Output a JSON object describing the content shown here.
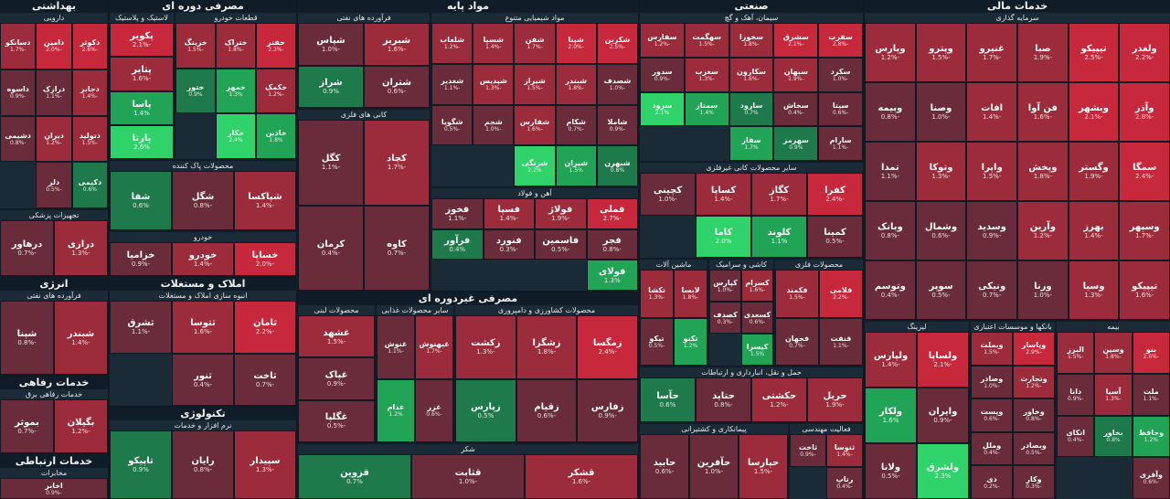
{
  "sectors": [
    {
      "name": "خدمات مالی",
      "groups": [
        {
          "name": "سرمایه گذاری",
          "tiles": [
            [
              "ولغدر",
              "-2.2%"
            ],
            [
              "تیپیکو",
              "-2.5%"
            ],
            [
              "صبا",
              "-1.9%"
            ],
            [
              "غنیرو",
              "-1.7%"
            ],
            [
              "وپترو",
              "-1.5%"
            ],
            [
              "وپارس",
              "-1.2%"
            ],
            [
              "وآذر",
              "-2.8%"
            ],
            [
              "وبشهر",
              "-2.1%"
            ],
            [
              "فن آوا",
              "-1.6%"
            ],
            [
              "افات",
              "-1.4%"
            ],
            [
              "وصنا",
              "-1.0%"
            ],
            [
              "وبیمه",
              "-0.8%"
            ],
            [
              "سمگا",
              "-2.4%"
            ],
            [
              "وگستر",
              "-1.9%"
            ],
            [
              "وپخش",
              "-1.8%"
            ],
            [
              "واپرا",
              "-1.5%"
            ],
            [
              "وتوکا",
              "-1.3%"
            ],
            [
              "تمدا",
              "-1.1%"
            ],
            [
              "وسپهر",
              "-1.7%"
            ],
            [
              "بهرز",
              "-1.4%"
            ],
            [
              "وآرین",
              "-1.2%"
            ],
            [
              "وسدید",
              "-0.9%"
            ],
            [
              "وشمال",
              "-0.6%"
            ],
            [
              "وبانک",
              "-0.8%"
            ],
            [
              "تیپیکو",
              "-1.6%"
            ],
            [
              "وسیا",
              "-1.3%"
            ],
            [
              "ورنا",
              "-1.0%"
            ],
            [
              "ونیکی",
              "-0.7%"
            ],
            [
              "سوپر",
              "-0.5%"
            ],
            [
              "وتوسم",
              "-0.4%"
            ]
          ]
        },
        {
          "name": "بیمه",
          "tiles": [
            [
              "بنو",
              "-2.6%"
            ],
            [
              "وسین",
              "-1.8%"
            ],
            [
              "البرز",
              "-1.5%"
            ],
            [
              "ملت",
              "-1.1%"
            ],
            [
              "آسیا",
              "-1.3%"
            ],
            [
              "دانا",
              "-0.9%"
            ],
            [
              "وحافظ",
              "1.2%"
            ],
            [
              "بخاور",
              "0.8%"
            ],
            [
              "اتکای",
              "-0.4%"
            ],
            [
              "وآفری",
              "-0.6%"
            ]
          ]
        },
        {
          "name": "بانکها و موسسات اعتباری",
          "tiles": [
            [
              "وپاسار",
              "-2.9%"
            ],
            [
              "وبملت",
              "-1.5%"
            ],
            [
              "وتجارت",
              "-1.2%"
            ],
            [
              "وصادر",
              "-1.0%"
            ],
            [
              "وخاور",
              "-0.8%"
            ],
            [
              "وپست",
              "-0.6%"
            ],
            [
              "وبصادر",
              "-0.5%"
            ],
            [
              "وملل",
              "-0.4%"
            ],
            [
              "وکار",
              "-0.3%"
            ],
            [
              "دی",
              "-0.2%"
            ]
          ]
        },
        {
          "name": "لیزینگ",
          "tiles": [
            [
              "ولساپا",
              "-2.1%"
            ],
            [
              "ولپارس",
              "-1.4%"
            ],
            [
              "وایران",
              "-0.9%"
            ],
            [
              "ولکار",
              "1.6%"
            ],
            [
              "ولشرق",
              "2.3%"
            ],
            [
              "ولانا",
              "-0.5%"
            ]
          ]
        }
      ]
    },
    {
      "name": "صنعتی",
      "groups": [
        {
          "name": "سیمان، آهک و گچ",
          "tiles": [
            [
              "سفرب",
              "-2.8%"
            ],
            [
              "سشرق",
              "-2.1%"
            ],
            [
              "سخوزا",
              "-1.8%"
            ],
            [
              "سهگمت",
              "-1.5%"
            ],
            [
              "سفارس",
              "-1.2%"
            ],
            [
              "سکرد",
              "-1.0%"
            ],
            [
              "سبهان",
              "-1.9%"
            ],
            [
              "سکارون",
              "-1.6%"
            ],
            [
              "سغرب",
              "-1.3%"
            ],
            [
              "سدور",
              "-0.9%"
            ],
            [
              "سیتا",
              "-0.6%"
            ],
            [
              "سخاش",
              "-0.4%"
            ],
            [
              "سارود",
              "0.7%"
            ],
            [
              "سمتاز",
              "1.4%"
            ],
            [
              "سرود",
              "2.1%"
            ],
            [
              "سارام",
              "-1.1%"
            ],
            [
              "سهرمز",
              "0.9%"
            ],
            [
              "سفار",
              "1.7%"
            ]
          ]
        },
        {
          "name": "سایر محصولات کانی غیرفلزی",
          "tiles": [
            [
              "کفرا",
              "-2.4%"
            ],
            [
              "کگاز",
              "-1.7%"
            ],
            [
              "کساپا",
              "-1.4%"
            ],
            [
              "کچینی",
              "-1.0%"
            ],
            [
              "کمینا",
              "-0.5%"
            ],
            [
              "کلوند",
              "1.1%"
            ],
            [
              "کاما",
              "2.0%"
            ]
          ]
        },
        {
          "name": "محصولات فلزی",
          "tiles": [
            [
              "فلامی",
              "-2.2%"
            ],
            [
              "فکمند",
              "-1.5%"
            ],
            [
              "فنفت",
              "-1.1%"
            ],
            [
              "فجهان",
              "-0.7%"
            ]
          ]
        },
        {
          "name": "کاشی و سرامیک",
          "tiles": [
            [
              "کسرام",
              "-1.6%"
            ],
            [
              "کپارس",
              "-1.0%"
            ],
            [
              "کسعدی",
              "-0.6%"
            ],
            [
              "کصدف",
              "-0.3%"
            ],
            [
              "کیسرا",
              "1.5%"
            ]
          ]
        },
        {
          "name": "ماشین آلات",
          "tiles": [
            [
              "لابسا",
              "-1.8%"
            ],
            [
              "تکشا",
              "-1.3%"
            ],
            [
              "تکنو",
              "1.2%"
            ],
            [
              "تیکو",
              "-0.5%"
            ]
          ]
        },
        {
          "name": "حمل و نقل، انبارداری و ارتباطات",
          "tiles": [
            [
              "حریل",
              "-1.9%"
            ],
            [
              "حکشتی",
              "-1.2%"
            ],
            [
              "حتاید",
              "-0.8%"
            ],
            [
              "حآسا",
              "0.6%"
            ]
          ]
        },
        {
          "name": "فعالیت مهندسی",
          "tiles": [
            [
              "ثنوسا",
              "-1.4%"
            ],
            [
              "ثاخت",
              "-0.9%"
            ],
            [
              "رتاپ",
              "-0.4%"
            ]
          ]
        },
        {
          "name": "پیمانکاری و کشتیرانی",
          "tiles": [
            [
              "حپارسا",
              "-1.5%"
            ],
            [
              "حآفرین",
              "-1.0%"
            ],
            [
              "حابید",
              "-0.6%"
            ]
          ]
        }
      ]
    },
    {
      "name": "مواد پایه",
      "groups": [
        {
          "name": "مواد شیمیایی متنوع",
          "tiles": [
            [
              "شکربن",
              "-2.5%"
            ],
            [
              "شپنا",
              "-2.0%"
            ],
            [
              "شفن",
              "-1.7%"
            ],
            [
              "شسپا",
              "-1.4%"
            ],
            [
              "شلعاب",
              "-1.2%"
            ],
            [
              "شصدف",
              "-1.0%"
            ],
            [
              "شبندر",
              "-1.8%"
            ],
            [
              "شیراز",
              "-1.5%"
            ],
            [
              "شپدیس",
              "-1.3%"
            ],
            [
              "شغدیر",
              "-1.1%"
            ],
            [
              "شاملا",
              "-0.9%"
            ],
            [
              "شکام",
              "-0.7%"
            ],
            [
              "شفارس",
              "-1.6%"
            ],
            [
              "شجم",
              "-1.0%"
            ],
            [
              "شگویا",
              "-0.5%"
            ],
            [
              "شبهرن",
              "0.8%"
            ],
            [
              "شیران",
              "1.5%"
            ],
            [
              "شرنگی",
              "2.2%"
            ]
          ]
        },
        {
          "name": "آهن و فولاد",
          "tiles": [
            [
              "فملی",
              "-2.7%"
            ],
            [
              "فولاژ",
              "-1.9%"
            ],
            [
              "فسپا",
              "-1.4%"
            ],
            [
              "فخوز",
              "-1.1%"
            ],
            [
              "فجر",
              "-0.8%"
            ],
            [
              "فاسمین",
              "-0.5%"
            ],
            [
              "فنورد",
              "-0.3%"
            ],
            [
              "فرآور",
              "0.4%"
            ],
            [
              "فولای",
              "1.3%"
            ]
          ]
        },
        {
          "name": "فرآورده های نفتی",
          "tiles": [
            [
              "شبریز",
              "-1.6%"
            ],
            [
              "شپاس",
              "-1.0%"
            ],
            [
              "شتران",
              "-0.6%"
            ],
            [
              "شراز",
              "0.9%"
            ]
          ]
        },
        {
          "name": "کانی های فلزی",
          "tiles": [
            [
              "کچاد",
              "-1.7%"
            ],
            [
              "کگل",
              "-1.1%"
            ],
            [
              "کاوه",
              "-0.7%"
            ],
            [
              "کرمان",
              "-0.4%"
            ]
          ]
        }
      ]
    },
    {
      "name": "مصرفی دوره ای",
      "groups": [
        {
          "name": "قطعات خودرو",
          "tiles": [
            [
              "خفنر",
              "-2.3%"
            ],
            [
              "ختراک",
              "-1.8%"
            ],
            [
              "خرینگ",
              "-1.5%"
            ],
            [
              "خکمک",
              "-1.2%"
            ],
            [
              "خمهر",
              "1.3%"
            ],
            [
              "ختور",
              "0.9%"
            ],
            [
              "خاذین",
              "1.8%"
            ],
            [
              "خکار",
              "2.4%"
            ]
          ]
        },
        {
          "name": "لاستیک و پلاستیک",
          "tiles": [
            [
              "پکویر",
              "-2.1%"
            ],
            [
              "پتایر",
              "-1.6%"
            ],
            [
              "پاسا",
              "1.4%"
            ],
            [
              "پارتا",
              "2.6%"
            ]
          ]
        },
        {
          "name": "محصولات پاک کننده",
          "tiles": [
            [
              "شپاکسا",
              "-1.4%"
            ],
            [
              "شگل",
              "-0.8%"
            ],
            [
              "شفا",
              "0.6%"
            ]
          ]
        },
        {
          "name": "خودرو",
          "tiles": [
            [
              "خساپا",
              "-2.0%"
            ],
            [
              "خودرو",
              "-1.4%"
            ],
            [
              "خزامیا",
              "-0.9%"
            ]
          ]
        }
      ]
    },
    {
      "name": "بهداشتی",
      "groups": [
        {
          "name": "دارویی",
          "tiles": [
            [
              "دکوثر",
              "-2.6%"
            ],
            [
              "دامین",
              "-2.0%"
            ],
            [
              "دسانکو",
              "-1.7%"
            ],
            [
              "دجابر",
              "-1.4%"
            ],
            [
              "درازک",
              "-1.1%"
            ],
            [
              "داسوه",
              "-0.9%"
            ],
            [
              "دتولید",
              "-1.5%"
            ],
            [
              "دیران",
              "-1.2%"
            ],
            [
              "دشیمی",
              "-0.8%"
            ],
            [
              "دکیمی",
              "0.6%"
            ],
            [
              "دلر",
              "-0.5%"
            ]
          ]
        },
        {
          "name": "تجهیزات پزشکی",
          "tiles": [
            [
              "درازی",
              "-1.3%"
            ],
            [
              "درهاور",
              "-0.7%"
            ]
          ]
        }
      ]
    },
    {
      "name": "مصرفی غیردوره ای",
      "groups": [
        {
          "name": "محصولات کشاورزی و دامپروری",
          "tiles": [
            [
              "زمگسا",
              "-2.4%"
            ],
            [
              "زشگزا",
              "-1.8%"
            ],
            [
              "زکشت",
              "-1.3%"
            ],
            [
              "زفارس",
              "-0.9%"
            ],
            [
              "زقیام",
              "-0.6%"
            ],
            [
              "زپارس",
              "0.5%"
            ]
          ]
        },
        {
          "name": "سایر محصولات غذایی",
          "tiles": [
            [
              "غبهنوش",
              "-1.7%"
            ],
            [
              "غنوش",
              "-1.1%"
            ],
            [
              "غزر",
              "-0.6%"
            ],
            [
              "غدام",
              "1.2%"
            ]
          ]
        },
        {
          "name": "محصولات لبنی",
          "tiles": [
            [
              "غشهد",
              "-1.5%"
            ],
            [
              "غپاک",
              "-0.9%"
            ],
            [
              "غگلپا",
              "-0.5%"
            ]
          ]
        },
        {
          "name": "شکر",
          "tiles": [
            [
              "قشکر",
              "-1.6%"
            ],
            [
              "قثابت",
              "-1.0%"
            ],
            [
              "قزوین",
              "0.7%"
            ]
          ]
        }
      ]
    },
    {
      "name": "املاک و مستغلات",
      "groups": [
        {
          "name": "انبوه سازی املاک و مستغلات",
          "tiles": [
            [
              "ثامان",
              "-2.2%"
            ],
            [
              "ثتوسا",
              "-1.6%"
            ],
            [
              "ثشرق",
              "-1.1%"
            ],
            [
              "ثاخت",
              "-0.7%"
            ],
            [
              "ثنور",
              "-0.4%"
            ]
          ]
        }
      ]
    },
    {
      "name": "انرژی",
      "groups": [
        {
          "name": "فرآورده های نفتی",
          "tiles": [
            [
              "شبندر",
              "-1.4%"
            ],
            [
              "شپنا",
              "-0.8%"
            ]
          ]
        }
      ]
    },
    {
      "name": "تکنولوژی",
      "groups": [
        {
          "name": "نرم افزار و خدمات",
          "tiles": [
            [
              "سپیدار",
              "-1.3%"
            ],
            [
              "رایان",
              "-0.8%"
            ],
            [
              "تاپیکو",
              "0.9%"
            ]
          ]
        }
      ]
    },
    {
      "name": "خدمات رفاهی",
      "groups": [
        {
          "name": "خدمات رفاهی برق",
          "tiles": [
            [
              "بگیلان",
              "-1.2%"
            ],
            [
              "بموثر",
              "-0.7%"
            ]
          ]
        }
      ]
    },
    {
      "name": "خدمات ارتباطی",
      "groups": [
        {
          "name": "مخابرات",
          "tiles": [
            [
              "اخابر",
              "-0.9%"
            ]
          ]
        }
      ]
    }
  ],
  "colors": {
    "strong_red": "#c8283c",
    "red": "#9c2c3c",
    "weak_red": "#6a2c3a",
    "neutral": "#3a4650",
    "weak_green": "#1e7a4a",
    "green": "#22a457",
    "strong_green": "#2fd36a"
  }
}
